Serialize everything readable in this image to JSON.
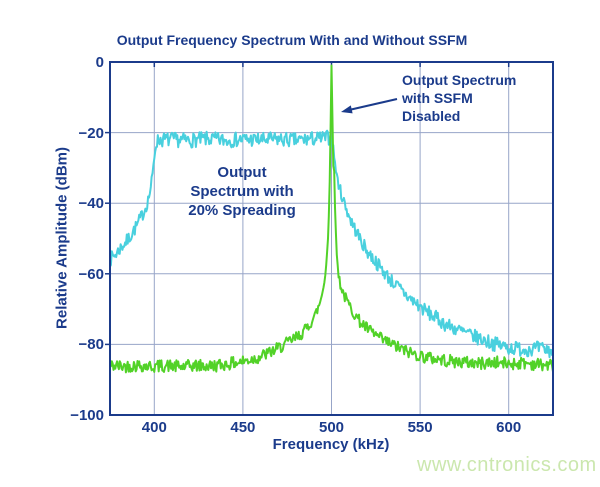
{
  "page": {
    "watermark": "www.cntronics.com"
  },
  "chart_data": {
    "type": "line",
    "title": "Output Frequency Spectrum With and Without SSFM",
    "xlabel": "Frequency (kHz)",
    "ylabel": "Relative Amplitude (dBm)",
    "xlim": [
      375,
      625
    ],
    "ylim": [
      -100,
      0
    ],
    "x_ticks": [
      400,
      450,
      500,
      550,
      600
    ],
    "y_ticks": [
      0,
      -20,
      -40,
      -60,
      -80,
      -100
    ],
    "y_tick_labels": [
      "0",
      "−20",
      "−40",
      "−60",
      "−80",
      "−100"
    ],
    "grid": true,
    "legend_position": "none (inline text annotations)",
    "colors": {
      "axis": "#1b3b8b",
      "grid": "#97a5c8",
      "title": "#1b3b8b",
      "watermark": "#cbe7ae"
    },
    "annotations": [
      {
        "text": "Output Spectrum\nwith SSFM\nDisabled",
        "arrow": true
      },
      {
        "text": "Output\nSpectrum with\n20% Spreading",
        "arrow": false
      }
    ],
    "series": [
      {
        "name": "Output Spectrum with 20% Spreading",
        "color": "#49d0de",
        "noise_db": 2.1,
        "points": [
          [
            375,
            -56
          ],
          [
            379,
            -54
          ],
          [
            382,
            -52
          ],
          [
            385,
            -50.5
          ],
          [
            388,
            -48
          ],
          [
            390,
            -46.5
          ],
          [
            392,
            -44.5
          ],
          [
            394,
            -42.5
          ],
          [
            396,
            -40
          ],
          [
            397.5,
            -37
          ],
          [
            399,
            -32
          ],
          [
            400,
            -27
          ],
          [
            401,
            -23
          ],
          [
            402.5,
            -22
          ],
          [
            410,
            -22
          ],
          [
            420,
            -22.2
          ],
          [
            430,
            -21.8
          ],
          [
            440,
            -22.2
          ],
          [
            450,
            -21.9
          ],
          [
            460,
            -22.1
          ],
          [
            470,
            -21.9
          ],
          [
            480,
            -22.2
          ],
          [
            488,
            -21.8
          ],
          [
            495,
            -21.6
          ],
          [
            499.5,
            -21.3
          ],
          [
            500.6,
            -23
          ],
          [
            501.6,
            -27
          ],
          [
            503,
            -32.5
          ],
          [
            505,
            -36.5
          ],
          [
            508,
            -41
          ],
          [
            511,
            -45
          ],
          [
            514,
            -48
          ],
          [
            517,
            -51
          ],
          [
            520,
            -53.5
          ],
          [
            524,
            -56
          ],
          [
            528,
            -58.5
          ],
          [
            533,
            -61.5
          ],
          [
            538,
            -64
          ],
          [
            543,
            -66.5
          ],
          [
            548,
            -68.5
          ],
          [
            553,
            -70.5
          ],
          [
            559,
            -72.5
          ],
          [
            565,
            -74.5
          ],
          [
            572,
            -76
          ],
          [
            579,
            -77.5
          ],
          [
            586,
            -78.8
          ],
          [
            593,
            -80
          ],
          [
            601,
            -81
          ],
          [
            609,
            -81.3
          ],
          [
            617,
            -81.2
          ],
          [
            625,
            -82
          ]
        ]
      },
      {
        "name": "Output Spectrum with SSFM Disabled",
        "color": "#52d228",
        "noise_db": 1.8,
        "points": [
          [
            375,
            -86
          ],
          [
            383,
            -86.2
          ],
          [
            391,
            -85.9
          ],
          [
            399,
            -86.3
          ],
          [
            407,
            -86
          ],
          [
            415,
            -86.4
          ],
          [
            423,
            -86
          ],
          [
            431,
            -86.2
          ],
          [
            439,
            -85.7
          ],
          [
            446,
            -85.2
          ],
          [
            452,
            -84.6
          ],
          [
            458,
            -83.8
          ],
          [
            463,
            -82.8
          ],
          [
            468,
            -81.6
          ],
          [
            473,
            -80.2
          ],
          [
            477,
            -79
          ],
          [
            481,
            -77.8
          ],
          [
            485,
            -76
          ],
          [
            488,
            -74
          ],
          [
            491,
            -71.5
          ],
          [
            493,
            -69
          ],
          [
            494.8,
            -65.5
          ],
          [
            496,
            -62
          ],
          [
            497,
            -57.5
          ],
          [
            498,
            -50
          ],
          [
            498.8,
            -40
          ],
          [
            499.4,
            -22
          ],
          [
            500,
            0
          ],
          [
            500.5,
            -15
          ],
          [
            500.9,
            -29
          ],
          [
            501.5,
            -31
          ],
          [
            502.1,
            -43
          ],
          [
            502.9,
            -54
          ],
          [
            503.9,
            -60
          ],
          [
            505,
            -63
          ],
          [
            507,
            -66
          ],
          [
            509.5,
            -68.5
          ],
          [
            512.5,
            -71
          ],
          [
            516,
            -73.5
          ],
          [
            520,
            -75.5
          ],
          [
            524.5,
            -77.2
          ],
          [
            529,
            -78.8
          ],
          [
            534,
            -80
          ],
          [
            540,
            -81.5
          ],
          [
            546,
            -82.6
          ],
          [
            553,
            -83.6
          ],
          [
            560,
            -84.2
          ],
          [
            568,
            -84.8
          ],
          [
            576,
            -85.1
          ],
          [
            584,
            -85.4
          ],
          [
            592,
            -85.1
          ],
          [
            600,
            -85.5
          ],
          [
            608,
            -85.2
          ],
          [
            616,
            -85.6
          ],
          [
            625,
            -86
          ]
        ]
      }
    ]
  }
}
